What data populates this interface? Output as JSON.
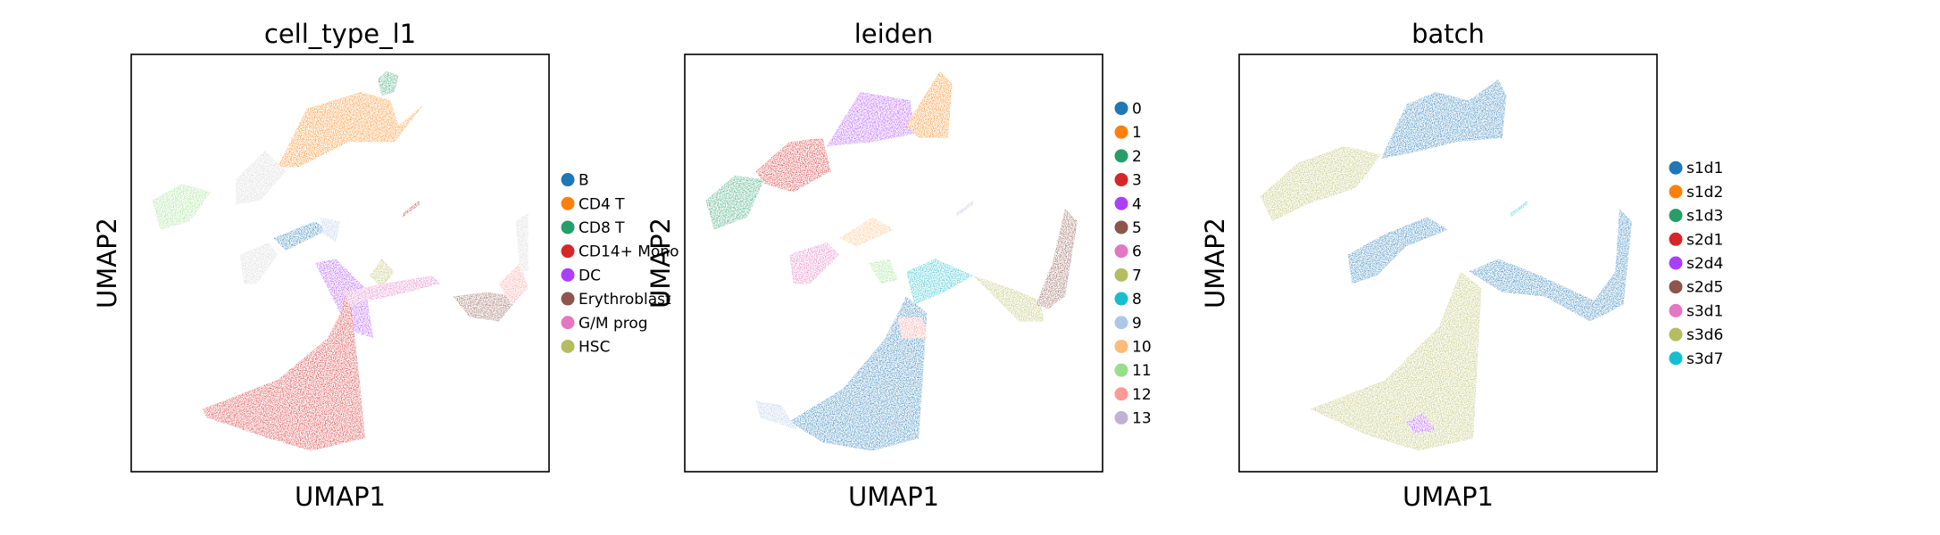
{
  "chart_data": [
    {
      "type": "scatter",
      "title": "cell_type_l1",
      "xlabel": "UMAP1",
      "ylabel": "UMAP2",
      "grid": false,
      "ticks": false,
      "legend_placement": "right",
      "legend": [
        {
          "label": "B",
          "color": "#1f77b4"
        },
        {
          "label": "CD4 T",
          "color": "#ff7f0e"
        },
        {
          "label": "CD8 T",
          "color": "#279e68"
        },
        {
          "label": "CD14+ Mono",
          "color": "#d62728"
        },
        {
          "label": "DC",
          "color": "#aa40fc"
        },
        {
          "label": "Erythroblast",
          "color": "#8c564b"
        },
        {
          "label": "G/M prog",
          "color": "#e377c2"
        },
        {
          "label": "HSC",
          "color": "#b5bd61"
        }
      ],
      "regions": [
        {
          "color": "#ff7f0e",
          "pts": [
            [
              0.35,
              0.27
            ],
            [
              0.42,
              0.13
            ],
            [
              0.55,
              0.09
            ],
            [
              0.62,
              0.11
            ],
            [
              0.64,
              0.17
            ],
            [
              0.7,
              0.12
            ],
            [
              0.63,
              0.21
            ],
            [
              0.52,
              0.21
            ],
            [
              0.4,
              0.27
            ]
          ]
        },
        {
          "color": "#279e68",
          "pts": [
            [
              0.59,
              0.06
            ],
            [
              0.61,
              0.04
            ],
            [
              0.64,
              0.05
            ],
            [
              0.63,
              0.09
            ],
            [
              0.6,
              0.1
            ]
          ]
        },
        {
          "color": "#d3d3d3",
          "pts": [
            [
              0.25,
              0.3
            ],
            [
              0.32,
              0.23
            ],
            [
              0.37,
              0.28
            ],
            [
              0.31,
              0.35
            ],
            [
              0.25,
              0.36
            ]
          ]
        },
        {
          "color": "#98df8a",
          "pts": [
            [
              0.05,
              0.35
            ],
            [
              0.12,
              0.31
            ],
            [
              0.19,
              0.33
            ],
            [
              0.14,
              0.4
            ],
            [
              0.07,
              0.42
            ]
          ]
        },
        {
          "color": "#1f77b4",
          "pts": [
            [
              0.34,
              0.44
            ],
            [
              0.44,
              0.4
            ],
            [
              0.47,
              0.42
            ],
            [
              0.37,
              0.47
            ]
          ]
        },
        {
          "color": "#aec7e8",
          "pts": [
            [
              0.45,
              0.39
            ],
            [
              0.5,
              0.4
            ],
            [
              0.49,
              0.45
            ],
            [
              0.46,
              0.43
            ]
          ]
        },
        {
          "color": "#d3d3d3",
          "pts": [
            [
              0.26,
              0.48
            ],
            [
              0.33,
              0.45
            ],
            [
              0.35,
              0.48
            ],
            [
              0.3,
              0.55
            ],
            [
              0.27,
              0.55
            ]
          ]
        },
        {
          "color": "#aa40fc",
          "pts": [
            [
              0.44,
              0.5
            ],
            [
              0.49,
              0.49
            ],
            [
              0.56,
              0.56
            ],
            [
              0.58,
              0.68
            ],
            [
              0.52,
              0.66
            ]
          ]
        },
        {
          "color": "#b5bd61",
          "pts": [
            [
              0.57,
              0.53
            ],
            [
              0.6,
              0.49
            ],
            [
              0.63,
              0.52
            ],
            [
              0.6,
              0.56
            ]
          ]
        },
        {
          "color": "#d62728",
          "pts": [
            [
              0.17,
              0.85
            ],
            [
              0.35,
              0.78
            ],
            [
              0.47,
              0.68
            ],
            [
              0.5,
              0.62
            ],
            [
              0.52,
              0.55
            ],
            [
              0.54,
              0.72
            ],
            [
              0.56,
              0.92
            ],
            [
              0.43,
              0.95
            ],
            [
              0.33,
              0.92
            ],
            [
              0.18,
              0.87
            ]
          ]
        },
        {
          "color": "#e377c2",
          "pts": [
            [
              0.51,
              0.57
            ],
            [
              0.6,
              0.55
            ],
            [
              0.72,
              0.53
            ],
            [
              0.74,
              0.55
            ],
            [
              0.62,
              0.58
            ],
            [
              0.52,
              0.6
            ]
          ]
        },
        {
          "color": "#8c564b",
          "pts": [
            [
              0.77,
              0.58
            ],
            [
              0.85,
              0.57
            ],
            [
              0.93,
              0.58
            ],
            [
              0.88,
              0.64
            ],
            [
              0.81,
              0.63
            ]
          ]
        },
        {
          "color": "#ff9896",
          "pts": [
            [
              0.88,
              0.55
            ],
            [
              0.93,
              0.5
            ],
            [
              0.95,
              0.56
            ],
            [
              0.91,
              0.6
            ]
          ]
        },
        {
          "color": "#d3d3d3",
          "pts": [
            [
              0.92,
              0.4
            ],
            [
              0.95,
              0.38
            ],
            [
              0.95,
              0.52
            ],
            [
              0.93,
              0.52
            ]
          ]
        },
        {
          "color": "#d62728",
          "pts": [
            [
              0.65,
              0.38
            ],
            [
              0.69,
              0.35
            ],
            [
              0.69,
              0.36
            ],
            [
              0.65,
              0.39
            ]
          ]
        }
      ]
    },
    {
      "type": "scatter",
      "title": "leiden",
      "xlabel": "UMAP1",
      "ylabel": "UMAP2",
      "grid": false,
      "ticks": false,
      "legend_placement": "right",
      "legend": [
        {
          "label": "0",
          "color": "#1f77b4"
        },
        {
          "label": "1",
          "color": "#ff7f0e"
        },
        {
          "label": "2",
          "color": "#279e68"
        },
        {
          "label": "3",
          "color": "#d62728"
        },
        {
          "label": "4",
          "color": "#aa40fc"
        },
        {
          "label": "5",
          "color": "#8c564b"
        },
        {
          "label": "6",
          "color": "#e377c2"
        },
        {
          "label": "7",
          "color": "#b5bd61"
        },
        {
          "label": "8",
          "color": "#17becf"
        },
        {
          "label": "9",
          "color": "#aec7e8"
        },
        {
          "label": "10",
          "color": "#ffbb78"
        },
        {
          "label": "11",
          "color": "#98df8a"
        },
        {
          "label": "12",
          "color": "#ff9896"
        },
        {
          "label": "13",
          "color": "#c5b0d5"
        }
      ],
      "regions": [
        {
          "color": "#aa40fc",
          "pts": [
            [
              0.34,
              0.22
            ],
            [
              0.42,
              0.09
            ],
            [
              0.54,
              0.11
            ],
            [
              0.55,
              0.19
            ],
            [
              0.45,
              0.21
            ]
          ]
        },
        {
          "color": "#ff7f0e",
          "pts": [
            [
              0.53,
              0.17
            ],
            [
              0.58,
              0.09
            ],
            [
              0.61,
              0.04
            ],
            [
              0.64,
              0.07
            ],
            [
              0.63,
              0.2
            ],
            [
              0.56,
              0.2
            ]
          ]
        },
        {
          "color": "#d62728",
          "pts": [
            [
              0.17,
              0.28
            ],
            [
              0.25,
              0.21
            ],
            [
              0.33,
              0.2
            ],
            [
              0.35,
              0.28
            ],
            [
              0.26,
              0.33
            ],
            [
              0.19,
              0.31
            ]
          ]
        },
        {
          "color": "#279e68",
          "pts": [
            [
              0.05,
              0.35
            ],
            [
              0.12,
              0.29
            ],
            [
              0.19,
              0.3
            ],
            [
              0.15,
              0.39
            ],
            [
              0.07,
              0.42
            ]
          ]
        },
        {
          "color": "#ffbb78",
          "pts": [
            [
              0.37,
              0.44
            ],
            [
              0.45,
              0.39
            ],
            [
              0.5,
              0.42
            ],
            [
              0.41,
              0.46
            ]
          ]
        },
        {
          "color": "#e377c2",
          "pts": [
            [
              0.25,
              0.48
            ],
            [
              0.34,
              0.45
            ],
            [
              0.37,
              0.48
            ],
            [
              0.3,
              0.55
            ],
            [
              0.26,
              0.55
            ]
          ]
        },
        {
          "color": "#98df8a",
          "pts": [
            [
              0.44,
              0.5
            ],
            [
              0.49,
              0.49
            ],
            [
              0.51,
              0.54
            ],
            [
              0.47,
              0.55
            ]
          ]
        },
        {
          "color": "#17becf",
          "pts": [
            [
              0.53,
              0.52
            ],
            [
              0.6,
              0.49
            ],
            [
              0.69,
              0.53
            ],
            [
              0.62,
              0.57
            ],
            [
              0.55,
              0.6
            ]
          ]
        },
        {
          "color": "#1f77b4",
          "pts": [
            [
              0.25,
              0.88
            ],
            [
              0.38,
              0.8
            ],
            [
              0.48,
              0.68
            ],
            [
              0.53,
              0.58
            ],
            [
              0.58,
              0.62
            ],
            [
              0.56,
              0.92
            ],
            [
              0.45,
              0.95
            ],
            [
              0.33,
              0.93
            ]
          ]
        },
        {
          "color": "#aec7e8",
          "pts": [
            [
              0.17,
              0.83
            ],
            [
              0.23,
              0.84
            ],
            [
              0.27,
              0.9
            ],
            [
              0.18,
              0.87
            ]
          ]
        },
        {
          "color": "#ff9896",
          "pts": [
            [
              0.51,
              0.63
            ],
            [
              0.57,
              0.63
            ],
            [
              0.58,
              0.68
            ],
            [
              0.52,
              0.68
            ]
          ]
        },
        {
          "color": "#b5bd61",
          "pts": [
            [
              0.69,
              0.53
            ],
            [
              0.78,
              0.56
            ],
            [
              0.85,
              0.59
            ],
            [
              0.86,
              0.64
            ],
            [
              0.8,
              0.64
            ],
            [
              0.73,
              0.57
            ]
          ]
        },
        {
          "color": "#8c564b",
          "pts": [
            [
              0.84,
              0.6
            ],
            [
              0.88,
              0.5
            ],
            [
              0.91,
              0.37
            ],
            [
              0.94,
              0.4
            ],
            [
              0.91,
              0.58
            ],
            [
              0.87,
              0.61
            ]
          ]
        },
        {
          "color": "#c5b0d5",
          "pts": [
            [
              0.65,
              0.38
            ],
            [
              0.69,
              0.35
            ],
            [
              0.69,
              0.36
            ],
            [
              0.65,
              0.39
            ]
          ]
        }
      ]
    },
    {
      "type": "scatter",
      "title": "batch",
      "xlabel": "UMAP1",
      "ylabel": "UMAP2",
      "grid": false,
      "ticks": false,
      "legend_placement": "right",
      "legend": [
        {
          "label": "s1d1",
          "color": "#1f77b4"
        },
        {
          "label": "s1d2",
          "color": "#ff7f0e"
        },
        {
          "label": "s1d3",
          "color": "#279e68"
        },
        {
          "label": "s2d1",
          "color": "#d62728"
        },
        {
          "label": "s2d4",
          "color": "#aa40fc"
        },
        {
          "label": "s2d5",
          "color": "#8c564b"
        },
        {
          "label": "s3d1",
          "color": "#e377c2"
        },
        {
          "label": "s3d6",
          "color": "#b5bd61"
        },
        {
          "label": "s3d7",
          "color": "#17becf"
        }
      ],
      "regions": [
        {
          "color": "#1f77b4",
          "pts": [
            [
              0.34,
              0.25
            ],
            [
              0.4,
              0.12
            ],
            [
              0.47,
              0.09
            ],
            [
              0.55,
              0.11
            ],
            [
              0.62,
              0.06
            ],
            [
              0.64,
              0.1
            ],
            [
              0.63,
              0.2
            ],
            [
              0.52,
              0.21
            ],
            [
              0.44,
              0.23
            ]
          ]
        },
        {
          "color": "#b5bd61",
          "pts": [
            [
              0.05,
              0.34
            ],
            [
              0.14,
              0.26
            ],
            [
              0.25,
              0.22
            ],
            [
              0.34,
              0.24
            ],
            [
              0.28,
              0.32
            ],
            [
              0.16,
              0.36
            ],
            [
              0.08,
              0.4
            ]
          ]
        },
        {
          "color": "#1f77b4",
          "pts": [
            [
              0.26,
              0.48
            ],
            [
              0.35,
              0.43
            ],
            [
              0.45,
              0.39
            ],
            [
              0.5,
              0.42
            ],
            [
              0.4,
              0.46
            ],
            [
              0.33,
              0.53
            ],
            [
              0.27,
              0.55
            ]
          ]
        },
        {
          "color": "#1f77b4",
          "pts": [
            [
              0.55,
              0.52
            ],
            [
              0.62,
              0.49
            ],
            [
              0.72,
              0.53
            ],
            [
              0.85,
              0.59
            ],
            [
              0.9,
              0.52
            ],
            [
              0.91,
              0.37
            ],
            [
              0.94,
              0.4
            ],
            [
              0.92,
              0.6
            ],
            [
              0.84,
              0.64
            ],
            [
              0.73,
              0.58
            ],
            [
              0.63,
              0.57
            ]
          ]
        },
        {
          "color": "#b5bd61",
          "pts": [
            [
              0.17,
              0.85
            ],
            [
              0.35,
              0.78
            ],
            [
              0.48,
              0.65
            ],
            [
              0.53,
              0.52
            ],
            [
              0.58,
              0.56
            ],
            [
              0.56,
              0.92
            ],
            [
              0.43,
              0.95
            ],
            [
              0.3,
              0.91
            ]
          ]
        },
        {
          "color": "#aa40fc",
          "pts": [
            [
              0.4,
              0.88
            ],
            [
              0.44,
              0.86
            ],
            [
              0.47,
              0.9
            ],
            [
              0.42,
              0.91
            ]
          ]
        },
        {
          "color": "#17becf",
          "pts": [
            [
              0.65,
              0.38
            ],
            [
              0.69,
              0.35
            ],
            [
              0.69,
              0.36
            ],
            [
              0.65,
              0.39
            ]
          ]
        }
      ]
    }
  ]
}
